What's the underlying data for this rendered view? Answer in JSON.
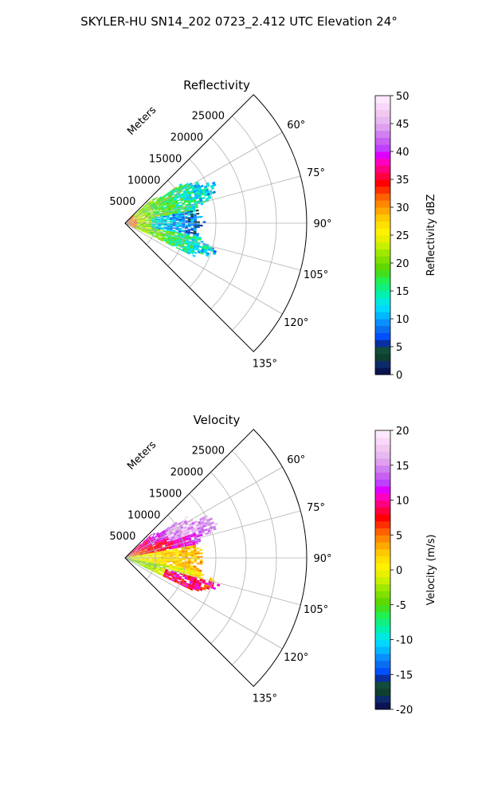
{
  "suptitle": "SKYLER-HU  SN14_202  0723_2.412 UTC Elevation 24°",
  "chart_data": [
    {
      "type": "polar-sector",
      "title": "Reflectivity",
      "radial_label": "Meters",
      "radial_ticks": [
        "5000",
        "10000",
        "15000",
        "20000",
        "25000"
      ],
      "radial_max": 30000,
      "theta_range_deg": [
        45,
        135
      ],
      "theta_ticks": [
        "60°",
        "75°",
        "90°",
        "105°",
        "120°",
        "135°"
      ],
      "colorbar": {
        "label": "Reflectivity dBZ",
        "range": [
          0,
          50
        ],
        "ticks": [
          "0",
          "5",
          "10",
          "15",
          "20",
          "25",
          "30",
          "35",
          "40",
          "45",
          "50"
        ],
        "colors": [
          "#0a1450",
          "#0d2a6b",
          "#0f3f30",
          "#114d3a",
          "#0b2fa0",
          "#0050ff",
          "#0a6ef0",
          "#0a8fff",
          "#00b8ff",
          "#00d8ff",
          "#00e8e0",
          "#00f0b0",
          "#10f080",
          "#20f050",
          "#40e020",
          "#60d800",
          "#80e000",
          "#a0e800",
          "#c8f000",
          "#e8f000",
          "#fff000",
          "#ffe000",
          "#ffc800",
          "#ffa800",
          "#ff8800",
          "#ff6000",
          "#ff3000",
          "#ff0000",
          "#ff0040",
          "#ff0080",
          "#ff00c0",
          "#e000ff",
          "#c040ff",
          "#c860f0",
          "#d080f0",
          "#e0a0f0",
          "#e8b8f0",
          "#f0c8f0",
          "#f8d8f8",
          "#fce8fc"
        ]
      },
      "grid": true
    },
    {
      "type": "polar-sector",
      "title": "Velocity",
      "radial_label": "Meters",
      "radial_ticks": [
        "5000",
        "10000",
        "15000",
        "20000",
        "25000"
      ],
      "radial_max": 30000,
      "theta_range_deg": [
        45,
        135
      ],
      "theta_ticks": [
        "60°",
        "75°",
        "90°",
        "105°",
        "120°",
        "135°"
      ],
      "colorbar": {
        "label": "Velocity (m/s)",
        "range": [
          -20,
          20
        ],
        "ticks": [
          "-20",
          "-15",
          "-10",
          "-5",
          "0",
          "5",
          "10",
          "15",
          "20"
        ],
        "colors": [
          "#0a1450",
          "#0d2a6b",
          "#0f3f30",
          "#114d3a",
          "#0b2fa0",
          "#0050ff",
          "#0a6ef0",
          "#0a8fff",
          "#00b8ff",
          "#00d8ff",
          "#00e8e0",
          "#00f0b0",
          "#10f080",
          "#20f050",
          "#40e020",
          "#60d800",
          "#80e000",
          "#a0e800",
          "#c8f000",
          "#e8f000",
          "#fff000",
          "#ffe000",
          "#ffc800",
          "#ffa800",
          "#ff8800",
          "#ff6000",
          "#ff3000",
          "#ff0000",
          "#ff0040",
          "#ff0080",
          "#ff00c0",
          "#e000ff",
          "#c040ff",
          "#c860f0",
          "#d080f0",
          "#e0a0f0",
          "#e8b8f0",
          "#f0c8f0",
          "#f8d8f8",
          "#fce8fc"
        ]
      },
      "grid": true
    }
  ]
}
